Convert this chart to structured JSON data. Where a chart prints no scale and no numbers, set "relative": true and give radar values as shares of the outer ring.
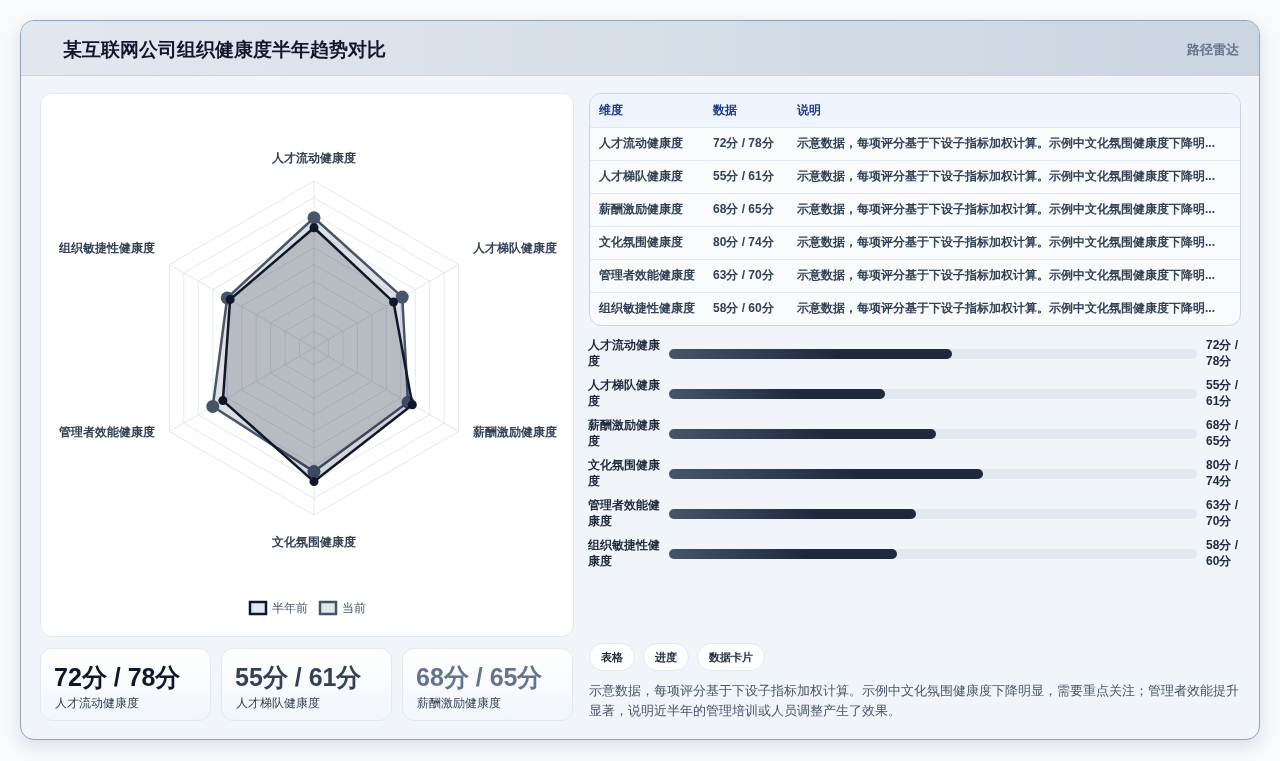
{
  "chart_data": [
    {
      "type": "other",
      "title": "某互联网公司组织健康度半年趋势对比",
      "subtitle": "路径雷达"
    },
    {
      "type": "radar",
      "relative": true,
      "grid": true,
      "legend": "bottom",
      "marker": "circle",
      "categories": [
        "人才流动健康度",
        "人才梯队健康度",
        "薪酬激励健康度",
        "文化氛围健康度",
        "管理者效能健康度",
        "组织敏捷性健康度"
      ],
      "series": [
        {
          "name": "半年前",
          "color": "#0f172a",
          "values": [
            0.72,
            0.55,
            0.68,
            0.8,
            0.63,
            0.58
          ]
        },
        {
          "name": "当前",
          "color": "#475569",
          "values": [
            0.78,
            0.61,
            0.65,
            0.74,
            0.7,
            0.6
          ]
        }
      ]
    },
    {
      "type": "other",
      "categories": [
        "人才流动健康度",
        "人才梯队健康度",
        "薪酬激励健康度",
        "文化氛围健康度",
        "管理者效能健康度",
        "组织敏捷性健康度"
      ],
      "value_labels": [
        "72分 / 78分",
        "55分 / 61分",
        "68分 / 65分",
        "80分 / 74分",
        "63分 / 70分",
        "58分 / 60分"
      ],
      "annotations": [
        "维度",
        "数据",
        "说明",
        "示意数据，每项评分基于下设子指标加权计算。示例中文化氛围健康度下降明...",
        "示意数据，每项评分基于下设子指标加权计算。示例中文化氛围健康度下降明...",
        "示意数据，每项评分基于下设子指标加权计算。示例中文化氛围健康度下降明...",
        "示意数据，每项评分基于下设子指标加权计算。示例中文化氛围健康度下降明...",
        "示意数据，每项评分基于下设子指标加权计算。示例中文化氛围健康度下降明...",
        "示意数据，每项评分基于下设子指标加权计算。示例中文化氛围健康度下降明..."
      ]
    },
    {
      "type": "bar",
      "orientation": "horizontal",
      "color": "#1e293b",
      "categories": [
        "人才流动健康度",
        "人才梯队健康度",
        "薪酬激励健康度",
        "文化氛围健康度",
        "管理者效能健康度",
        "组织敏捷性健康度"
      ],
      "values": [
        72,
        55,
        68,
        80,
        63,
        58
      ],
      "value_labels": [
        "72分 / 78分",
        "55分 / 61分",
        "68分 / 65分",
        "80分 / 74分",
        "63分 / 70分",
        "58分 / 60分"
      ]
    },
    {
      "type": "other",
      "categories": [
        "人才流动健康度",
        "人才梯队健康度",
        "薪酬激励健康度"
      ],
      "value_labels": [
        "72分 / 78分",
        "55分 / 61分",
        "68分 / 65分"
      ],
      "annotations": [
        "表格",
        "进度",
        "数据卡片",
        "示意数据，每项评分基于下设子指标加权计算。示例中文化氛围健康度下降明显，需要重点关注；管理者效能提升显著，说明近半年的管理培训或人员调整产生了效果。"
      ]
    }
  ]
}
